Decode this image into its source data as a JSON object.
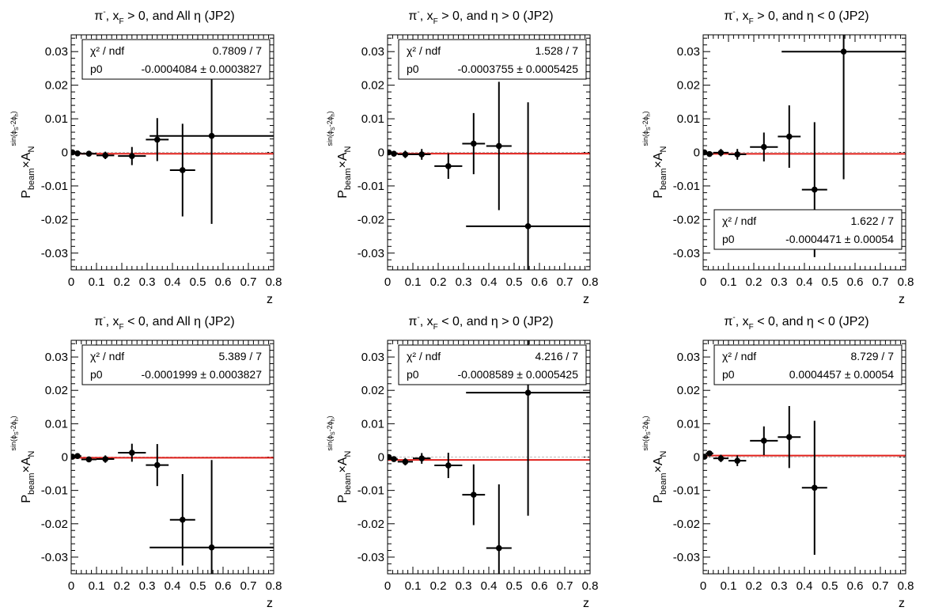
{
  "figure": {
    "fit_color": "#e0201b",
    "zero_line_color": "#bdbdbd",
    "marker_color": "#000000",
    "ylabel": {
      "main": "P",
      "sub_beam": "beam",
      "times": "×A",
      "sub_n": "N",
      "sup": "sin(ϕ",
      "sup_s": "S",
      "sup_mid": "-2ϕ",
      "sup_h": "h",
      "sup_end": ")"
    }
  },
  "chart_data": [
    {
      "type": "scatter",
      "title": {
        "pi": "π",
        "minus": "-",
        "mid1": ", x",
        "sub": "F",
        "rest": " > 0, and All η (JP2)"
      },
      "xlabel": "z",
      "xlim": [
        0,
        0.8
      ],
      "ylim": [
        -0.035,
        0.035
      ],
      "xticks": [
        "0",
        "0.1",
        "0.2",
        "0.3",
        "0.4",
        "0.5",
        "0.6",
        "0.7",
        "0.8"
      ],
      "yticks": [
        "0.03",
        "0.02",
        "0.01",
        "0",
        "-0.01",
        "-0.02",
        "-0.03"
      ],
      "stats": {
        "placement": "top-right",
        "chi_label": "χ² / ndf",
        "chi_value": "0.7809 / 7",
        "p0_label": "p0",
        "p0_value": "-0.0004084 ± 0.0003827"
      },
      "fit": -0.0004084,
      "points": [
        {
          "x": 0.005,
          "y": 0.0,
          "xerr": 0.005,
          "yerr": 0.0004
        },
        {
          "x": 0.025,
          "y": -0.0003,
          "xerr": 0.015,
          "yerr": 0.0005
        },
        {
          "x": 0.07,
          "y": -0.0004,
          "xerr": 0.03,
          "yerr": 0.0007
        },
        {
          "x": 0.135,
          "y": -0.0009,
          "xerr": 0.035,
          "yerr": 0.0011
        },
        {
          "x": 0.24,
          "y": -0.0011,
          "xerr": 0.055,
          "yerr": 0.0027
        },
        {
          "x": 0.34,
          "y": 0.0038,
          "xerr": 0.045,
          "yerr": 0.0064
        },
        {
          "x": 0.44,
          "y": -0.0053,
          "xerr": 0.05,
          "yerr": 0.0138
        },
        {
          "x": 0.555,
          "y": 0.0049,
          "xerr": 0.245,
          "yerr": 0.0262
        }
      ]
    },
    {
      "type": "scatter",
      "title": {
        "pi": "π",
        "minus": "-",
        "mid1": ", x",
        "sub": "F",
        "rest": " > 0, and η > 0 (JP2)"
      },
      "xlabel": "z",
      "xlim": [
        0,
        0.8
      ],
      "ylim": [
        -0.035,
        0.035
      ],
      "xticks": [
        "0",
        "0.1",
        "0.2",
        "0.3",
        "0.4",
        "0.5",
        "0.6",
        "0.7",
        "0.8"
      ],
      "yticks": [
        "0.03",
        "0.02",
        "0.01",
        "0",
        "-0.01",
        "-0.02",
        "-0.03"
      ],
      "stats": {
        "placement": "top-right",
        "chi_label": "χ² / ndf",
        "chi_value": "1.528 / 7",
        "p0_label": "p0",
        "p0_value": "-0.0003755 ± 0.0005425"
      },
      "fit": -0.0003755,
      "points": [
        {
          "x": 0.005,
          "y": 0.0,
          "xerr": 0.005,
          "yerr": 0.0005
        },
        {
          "x": 0.025,
          "y": -0.0004,
          "xerr": 0.015,
          "yerr": 0.0007
        },
        {
          "x": 0.07,
          "y": -0.0006,
          "xerr": 0.03,
          "yerr": 0.0011
        },
        {
          "x": 0.135,
          "y": -0.0006,
          "xerr": 0.035,
          "yerr": 0.0016
        },
        {
          "x": 0.24,
          "y": -0.0041,
          "xerr": 0.055,
          "yerr": 0.0038
        },
        {
          "x": 0.34,
          "y": 0.0026,
          "xerr": 0.045,
          "yerr": 0.0091
        },
        {
          "x": 0.44,
          "y": 0.0019,
          "xerr": 0.05,
          "yerr": 0.0191
        },
        {
          "x": 0.555,
          "y": -0.022,
          "xerr": 0.245,
          "yerr": 0.0369
        }
      ]
    },
    {
      "type": "scatter",
      "title": {
        "pi": "π",
        "minus": "-",
        "mid1": ", x",
        "sub": "F",
        "rest": " > 0, and η < 0 (JP2)"
      },
      "xlabel": "z",
      "xlim": [
        0,
        0.8
      ],
      "ylim": [
        -0.035,
        0.035
      ],
      "xticks": [
        "0",
        "0.1",
        "0.2",
        "0.3",
        "0.4",
        "0.5",
        "0.6",
        "0.7",
        "0.8"
      ],
      "yticks": [
        "0.03",
        "0.02",
        "0.01",
        "0",
        "-0.01",
        "-0.02",
        "-0.03"
      ],
      "stats": {
        "placement": "bottom-right",
        "chi_label": "χ² / ndf",
        "chi_value": "1.622 / 7",
        "p0_label": "p0",
        "p0_value": "-0.0004471 ± 0.00054"
      },
      "fit": -0.0004471,
      "points": [
        {
          "x": 0.005,
          "y": 0.0,
          "xerr": 0.005,
          "yerr": 0.0005
        },
        {
          "x": 0.025,
          "y": -0.0005,
          "xerr": 0.015,
          "yerr": 0.0007
        },
        {
          "x": 0.07,
          "y": -0.0001,
          "xerr": 0.03,
          "yerr": 0.0011
        },
        {
          "x": 0.135,
          "y": -0.0006,
          "xerr": 0.035,
          "yerr": 0.0016
        },
        {
          "x": 0.24,
          "y": 0.0016,
          "xerr": 0.055,
          "yerr": 0.0043
        },
        {
          "x": 0.34,
          "y": 0.0047,
          "xerr": 0.045,
          "yerr": 0.0093
        },
        {
          "x": 0.44,
          "y": -0.0111,
          "xerr": 0.05,
          "yerr": 0.0201
        },
        {
          "x": 0.555,
          "y": 0.03,
          "xerr": 0.245,
          "yerr": 0.038
        }
      ]
    },
    {
      "type": "scatter",
      "title": {
        "pi": "π",
        "minus": "-",
        "mid1": ", x",
        "sub": "F",
        "rest": " < 0, and All η (JP2)"
      },
      "xlabel": "z",
      "xlim": [
        0,
        0.8
      ],
      "ylim": [
        -0.035,
        0.035
      ],
      "xticks": [
        "0",
        "0.1",
        "0.2",
        "0.3",
        "0.4",
        "0.5",
        "0.6",
        "0.7",
        "0.8"
      ],
      "yticks": [
        "0.03",
        "0.02",
        "0.01",
        "0",
        "-0.01",
        "-0.02",
        "-0.03"
      ],
      "stats": {
        "placement": "top-right",
        "chi_label": "χ² / ndf",
        "chi_value": "5.389 / 7",
        "p0_label": "p0",
        "p0_value": "-0.0001999 ± 0.0003827"
      },
      "fit": -0.0001999,
      "points": [
        {
          "x": 0.005,
          "y": 0.0001,
          "xerr": 0.005,
          "yerr": 0.0004
        },
        {
          "x": 0.025,
          "y": 0.0003,
          "xerr": 0.015,
          "yerr": 0.0005
        },
        {
          "x": 0.07,
          "y": -0.0007,
          "xerr": 0.03,
          "yerr": 0.0007
        },
        {
          "x": 0.135,
          "y": -0.0006,
          "xerr": 0.035,
          "yerr": 0.0011
        },
        {
          "x": 0.24,
          "y": 0.0013,
          "xerr": 0.055,
          "yerr": 0.0027
        },
        {
          "x": 0.34,
          "y": -0.0024,
          "xerr": 0.045,
          "yerr": 0.0063
        },
        {
          "x": 0.44,
          "y": -0.0188,
          "xerr": 0.05,
          "yerr": 0.0137
        },
        {
          "x": 0.555,
          "y": -0.0271,
          "xerr": 0.245,
          "yerr": 0.0262
        }
      ]
    },
    {
      "type": "scatter",
      "title": {
        "pi": "π",
        "minus": "-",
        "mid1": ", x",
        "sub": "F",
        "rest": " < 0, and η > 0 (JP2)"
      },
      "xlabel": "z",
      "xlim": [
        0,
        0.8
      ],
      "ylim": [
        -0.035,
        0.035
      ],
      "xticks": [
        "0",
        "0.1",
        "0.2",
        "0.3",
        "0.4",
        "0.5",
        "0.6",
        "0.7",
        "0.8"
      ],
      "yticks": [
        "0.03",
        "0.02",
        "0.01",
        "0",
        "-0.01",
        "-0.02",
        "-0.03"
      ],
      "stats": {
        "placement": "top-right",
        "chi_label": "χ² / ndf",
        "chi_value": "4.216 / 7",
        "p0_label": "p0",
        "p0_value": "-0.0008589 ± 0.0005425"
      },
      "fit": -0.0008589,
      "points": [
        {
          "x": 0.005,
          "y": 0.0,
          "xerr": 0.005,
          "yerr": 0.0005
        },
        {
          "x": 0.025,
          "y": -0.0006,
          "xerr": 0.015,
          "yerr": 0.0007
        },
        {
          "x": 0.07,
          "y": -0.0014,
          "xerr": 0.03,
          "yerr": 0.0011
        },
        {
          "x": 0.135,
          "y": -0.0004,
          "xerr": 0.035,
          "yerr": 0.0016
        },
        {
          "x": 0.24,
          "y": -0.0025,
          "xerr": 0.055,
          "yerr": 0.0038
        },
        {
          "x": 0.34,
          "y": -0.0113,
          "xerr": 0.045,
          "yerr": 0.0091
        },
        {
          "x": 0.44,
          "y": -0.0273,
          "xerr": 0.05,
          "yerr": 0.0191
        },
        {
          "x": 0.555,
          "y": 0.0193,
          "xerr": 0.245,
          "yerr": 0.0369
        }
      ]
    },
    {
      "type": "scatter",
      "title": {
        "pi": "π",
        "minus": "-",
        "mid1": ", x",
        "sub": "F",
        "rest": " < 0, and η < 0 (JP2)"
      },
      "xlabel": "z",
      "xlim": [
        0,
        0.8
      ],
      "ylim": [
        -0.035,
        0.035
      ],
      "xticks": [
        "0",
        "0.1",
        "0.2",
        "0.3",
        "0.4",
        "0.5",
        "0.6",
        "0.7",
        "0.8"
      ],
      "yticks": [
        "0.03",
        "0.02",
        "0.01",
        "0",
        "-0.01",
        "-0.02",
        "-0.03"
      ],
      "stats": {
        "placement": "top-right",
        "chi_label": "χ² / ndf",
        "chi_value": "8.729 / 7",
        "p0_label": "p0",
        "p0_value": "0.0004457 ± 0.00054"
      },
      "fit": 0.0004457,
      "points": [
        {
          "x": 0.005,
          "y": 0.0001,
          "xerr": 0.005,
          "yerr": 0.0005
        },
        {
          "x": 0.025,
          "y": 0.0011,
          "xerr": 0.015,
          "yerr": 0.0007
        },
        {
          "x": 0.07,
          "y": -0.0004,
          "xerr": 0.03,
          "yerr": 0.0011
        },
        {
          "x": 0.135,
          "y": -0.0011,
          "xerr": 0.035,
          "yerr": 0.0016
        },
        {
          "x": 0.24,
          "y": 0.0049,
          "xerr": 0.055,
          "yerr": 0.0043
        },
        {
          "x": 0.34,
          "y": 0.006,
          "xerr": 0.045,
          "yerr": 0.0093
        },
        {
          "x": 0.44,
          "y": -0.0092,
          "xerr": 0.05,
          "yerr": 0.0201
        }
      ]
    }
  ]
}
